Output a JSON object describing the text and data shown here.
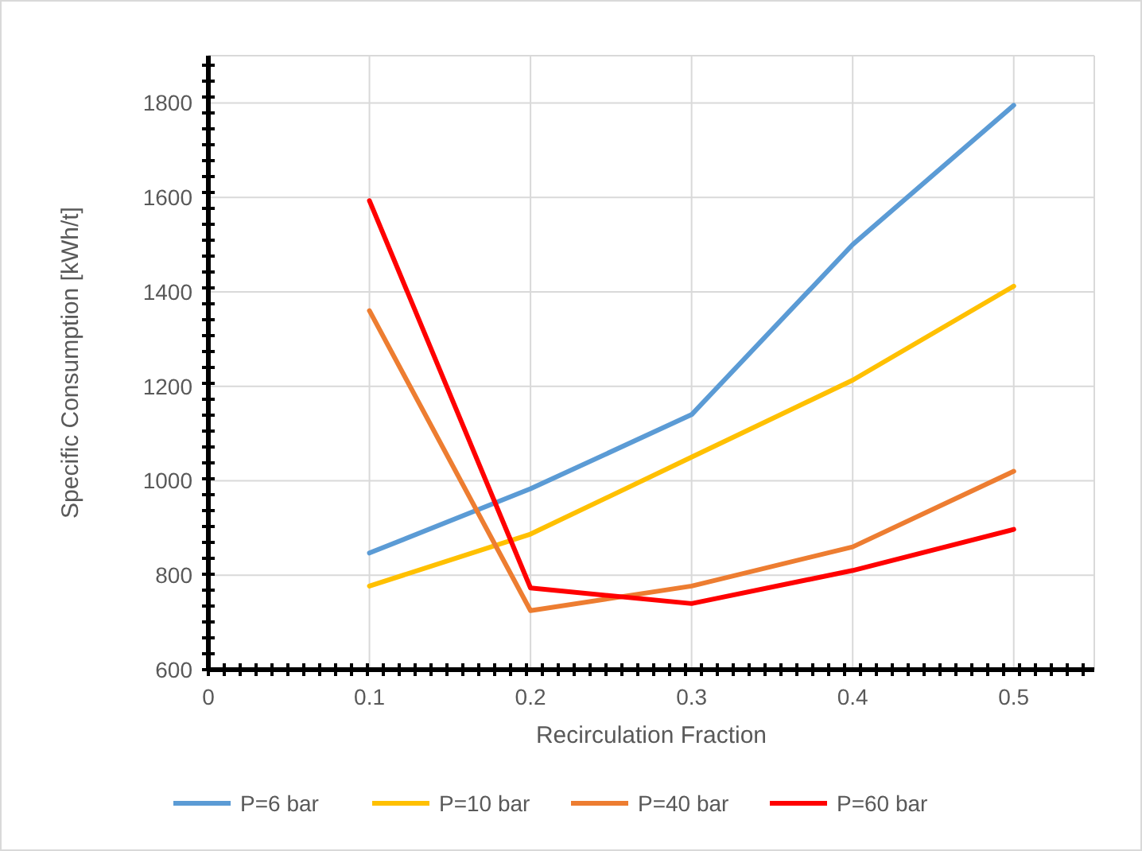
{
  "chart_data": {
    "type": "line",
    "xlabel": "Recirculation Fraction",
    "ylabel": "Specific Consumption [kWh/t]",
    "x": [
      0.1,
      0.2,
      0.3,
      0.4,
      0.5
    ],
    "series": [
      {
        "name": "P=6 bar",
        "color": "#5b9bd5",
        "values": [
          847,
          983,
          1140,
          1500,
          1795
        ]
      },
      {
        "name": "P=10 bar",
        "color": "#ffc000",
        "values": [
          777,
          887,
          1050,
          1213,
          1412
        ]
      },
      {
        "name": "P=40 bar",
        "color": "#ed7d31",
        "values": [
          1360,
          725,
          777,
          860,
          1020
        ]
      },
      {
        "name": "P=60 bar",
        "color": "#ff0000",
        "values": [
          1593,
          773,
          740,
          810,
          897
        ]
      }
    ],
    "xlim": [
      0,
      0.55
    ],
    "xticks": [
      0,
      0.1,
      0.2,
      0.3,
      0.4,
      0.5
    ],
    "ylim": [
      600,
      1900
    ],
    "yticks": [
      600,
      800,
      1000,
      1200,
      1400,
      1600,
      1800
    ],
    "grid": true,
    "legend": "bottom",
    "marker": "none",
    "line_style": "solid"
  }
}
